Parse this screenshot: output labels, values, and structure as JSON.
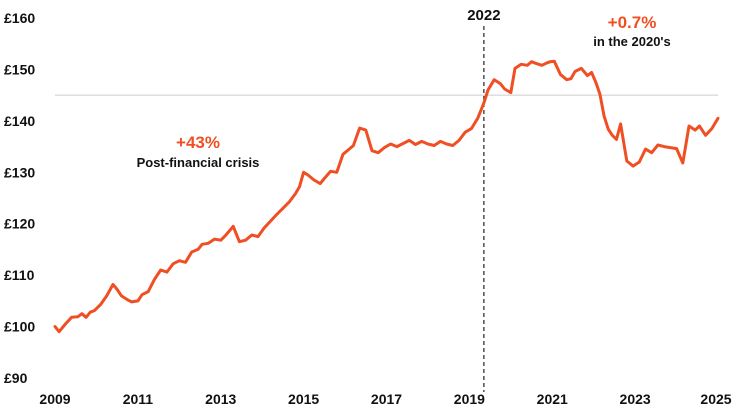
{
  "chart_data": {
    "type": "line",
    "y_tick_labels": [
      "£160",
      "£150",
      "£140",
      "£130",
      "£120",
      "£110",
      "£100",
      "£90"
    ],
    "y_ticks": [
      160,
      150,
      140,
      130,
      120,
      110,
      100,
      90
    ],
    "x_tick_labels": [
      "2009",
      "2011",
      "2013",
      "2015",
      "2017",
      "2019",
      "2021",
      "2023",
      "2025"
    ],
    "x_ticks": [
      2009,
      2011,
      2013,
      2015,
      2017,
      2019,
      2021,
      2023,
      2025
    ],
    "xlim": [
      2009,
      2025
    ],
    "ylim": [
      90,
      160
    ],
    "reference_line_y": 145,
    "vertical_marker": {
      "x": 2019.35,
      "label": "2022"
    },
    "annotations": [
      {
        "value": "+43%",
        "text": "Post-financial crisis"
      },
      {
        "value": "+0.7%",
        "text": "in the 2020's"
      }
    ],
    "colors": {
      "line": "#f04e23",
      "reference": "#cccccc",
      "marker": "#333333"
    },
    "series": [
      {
        "x": [
          2009.0,
          2009.1,
          2009.25,
          2009.4,
          2009.55,
          2009.65,
          2009.75,
          2009.85,
          2009.95,
          2010.1,
          2010.25,
          2010.4,
          2010.5,
          2010.6,
          2010.75,
          2010.85,
          2011.0,
          2011.1,
          2011.25,
          2011.4,
          2011.55,
          2011.7,
          2011.85,
          2012.0,
          2012.15,
          2012.3,
          2012.45,
          2012.55,
          2012.7,
          2012.85,
          2013.0,
          2013.1,
          2013.2,
          2013.3,
          2013.45,
          2013.6,
          2013.75,
          2013.9,
          2014.05,
          2014.2,
          2014.35,
          2014.5,
          2014.65,
          2014.8,
          2014.9,
          2015.0,
          2015.1,
          2015.25,
          2015.4,
          2015.5,
          2015.65,
          2015.8,
          2015.95,
          2016.1,
          2016.2,
          2016.35,
          2016.5,
          2016.65,
          2016.8,
          2016.95,
          2017.1,
          2017.25,
          2017.4,
          2017.55,
          2017.7,
          2017.85,
          2018.0,
          2018.15,
          2018.3,
          2018.45,
          2018.6,
          2018.75,
          2018.9,
          2019.05,
          2019.2,
          2019.35,
          2019.45,
          2019.6,
          2019.75,
          2019.85,
          2020.0,
          2020.1,
          2020.25,
          2020.4,
          2020.5,
          2020.6,
          2020.75,
          2020.85,
          2020.95,
          2021.05,
          2021.2,
          2021.35,
          2021.45,
          2021.55,
          2021.7,
          2021.85,
          2021.95,
          2022.05,
          2022.15,
          2022.25,
          2022.35,
          2022.45,
          2022.55,
          2022.65,
          2022.8,
          2022.95,
          2023.1,
          2023.25,
          2023.4,
          2023.55,
          2023.7,
          2023.85,
          2024.0,
          2024.15,
          2024.3,
          2024.45,
          2024.55,
          2024.7,
          2024.85,
          2025.0
        ],
        "values": [
          100.0,
          99.0,
          100.5,
          101.8,
          101.9,
          102.5,
          101.8,
          102.8,
          103.1,
          104.3,
          106.0,
          108.2,
          107.2,
          106.0,
          105.2,
          104.8,
          105.0,
          106.2,
          106.8,
          109.2,
          111.0,
          110.6,
          112.2,
          112.8,
          112.5,
          114.5,
          115.0,
          116.0,
          116.2,
          117.0,
          116.8,
          117.6,
          118.5,
          119.5,
          116.5,
          116.8,
          117.8,
          117.5,
          119.2,
          120.5,
          121.8,
          123.0,
          124.2,
          125.8,
          127.2,
          130.0,
          129.5,
          128.5,
          127.8,
          128.8,
          130.2,
          130.0,
          133.5,
          134.5,
          135.2,
          138.6,
          138.2,
          134.2,
          133.8,
          134.8,
          135.5,
          135.0,
          135.6,
          136.2,
          135.4,
          136.0,
          135.5,
          135.2,
          136.0,
          135.5,
          135.2,
          136.2,
          137.8,
          138.5,
          140.5,
          143.5,
          146.0,
          148.0,
          147.2,
          146.2,
          145.5,
          150.2,
          151.0,
          150.8,
          151.5,
          151.2,
          150.8,
          151.2,
          151.5,
          151.6,
          149.0,
          148.0,
          148.2,
          149.6,
          150.2,
          148.8,
          149.4,
          147.5,
          145.2,
          141.0,
          138.4,
          137.2,
          136.4,
          139.4,
          132.2,
          131.2,
          132.0,
          134.5,
          133.8,
          135.3,
          135.0,
          134.8,
          134.6,
          131.8,
          139.0,
          138.2,
          139.0,
          137.2,
          138.5,
          140.5
        ]
      }
    ]
  }
}
